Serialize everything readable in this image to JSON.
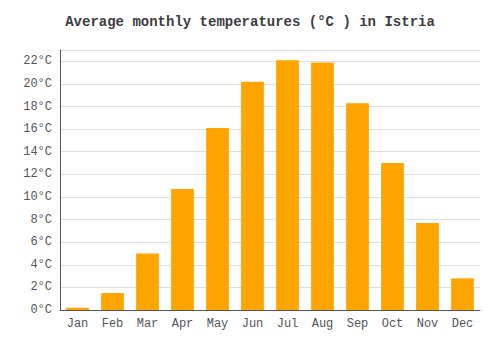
{
  "chart_data": {
    "type": "bar",
    "title": "Average monthly temperatures (°C ) in Istria",
    "categories": [
      "Jan",
      "Feb",
      "Mar",
      "Apr",
      "May",
      "Jun",
      "Jul",
      "Aug",
      "Sep",
      "Oct",
      "Nov",
      "Dec"
    ],
    "values": [
      0.2,
      1.5,
      5.0,
      10.7,
      16.1,
      20.2,
      22.1,
      21.9,
      18.3,
      13.0,
      7.7,
      2.8
    ],
    "color": "#FFA500",
    "ylim": [
      0,
      23
    ],
    "yticks": [
      {
        "value": 0,
        "label": "0°C"
      },
      {
        "value": 2,
        "label": "2°C"
      },
      {
        "value": 4,
        "label": "4°C"
      },
      {
        "value": 6,
        "label": "6°C"
      },
      {
        "value": 8,
        "label": "8°C"
      },
      {
        "value": 10,
        "label": "10°C"
      },
      {
        "value": 12,
        "label": "12°C"
      },
      {
        "value": 14,
        "label": "14°C"
      },
      {
        "value": 16,
        "label": "16°C"
      },
      {
        "value": 18,
        "label": "18°C"
      },
      {
        "value": 20,
        "label": "20°C"
      },
      {
        "value": 22,
        "label": "22°C"
      }
    ],
    "grid": true
  }
}
